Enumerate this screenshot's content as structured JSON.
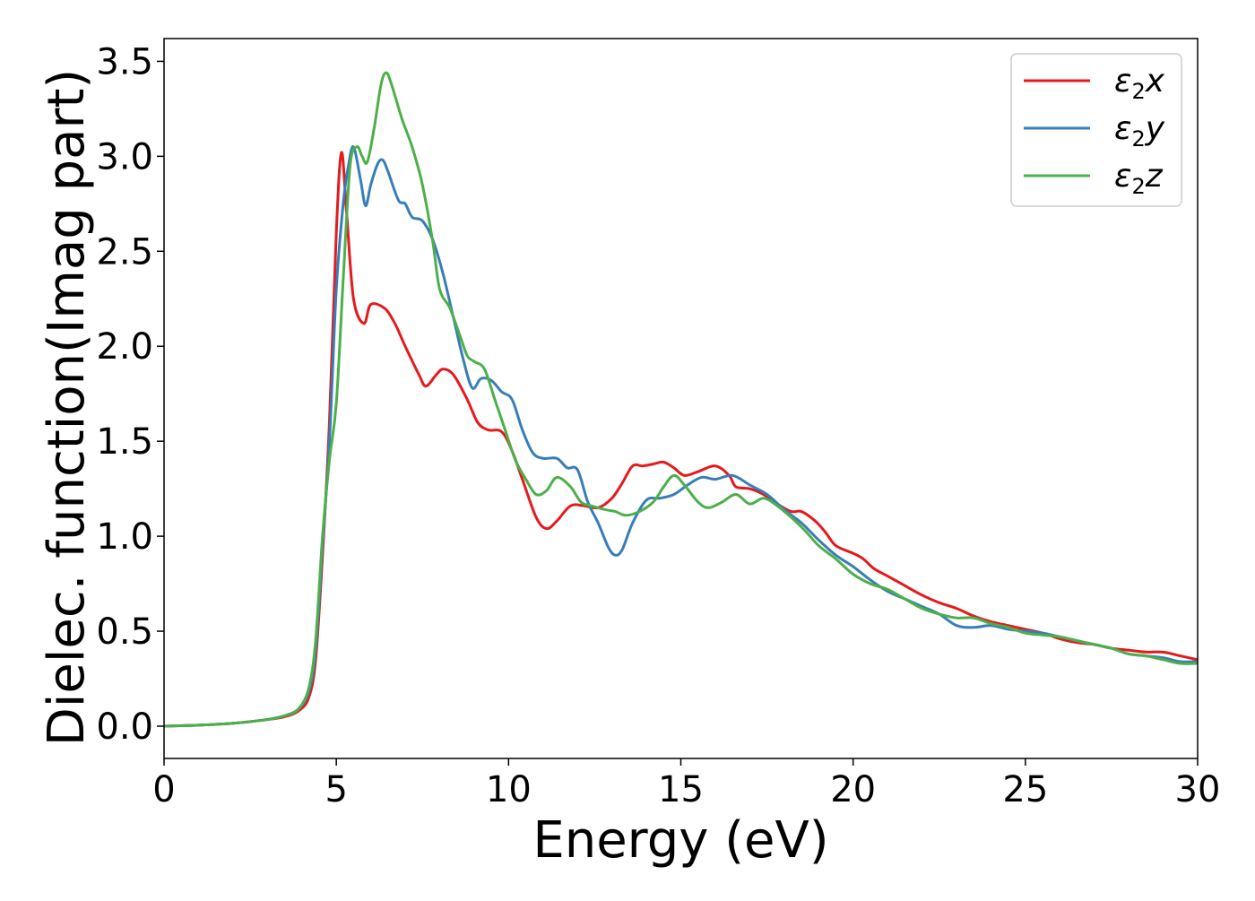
{
  "chart_data": {
    "type": "line",
    "title": "",
    "xlabel": "Energy (eV)",
    "ylabel": "Dielec. function(Imag part)",
    "xlim": [
      0,
      30
    ],
    "ylim": [
      -0.17,
      3.62
    ],
    "xticks": [
      0,
      5,
      10,
      15,
      20,
      25,
      30
    ],
    "xtick_labels": [
      "0",
      "5",
      "10",
      "15",
      "20",
      "25",
      "30"
    ],
    "yticks": [
      0.0,
      0.5,
      1.0,
      1.5,
      2.0,
      2.5,
      3.0,
      3.5
    ],
    "ytick_labels": [
      "0.0",
      "0.5",
      "1.0",
      "1.5",
      "2.0",
      "2.5",
      "3.0",
      "3.5"
    ],
    "grid": false,
    "legend_position": "top-right",
    "series": [
      {
        "name": "ε2x",
        "legend_symbol": "ε",
        "legend_sub": "2",
        "legend_var": "x",
        "color": "#e41a1c",
        "points": [
          [
            0,
            0.0
          ],
          [
            1,
            0.005
          ],
          [
            2,
            0.015
          ],
          [
            3,
            0.035
          ],
          [
            3.5,
            0.05
          ],
          [
            3.9,
            0.08
          ],
          [
            4.2,
            0.15
          ],
          [
            4.4,
            0.35
          ],
          [
            4.6,
            0.9
          ],
          [
            4.8,
            1.6
          ],
          [
            5.0,
            2.6
          ],
          [
            5.15,
            3.02
          ],
          [
            5.3,
            2.7
          ],
          [
            5.5,
            2.25
          ],
          [
            5.8,
            2.12
          ],
          [
            6.0,
            2.22
          ],
          [
            6.4,
            2.2
          ],
          [
            6.7,
            2.12
          ],
          [
            7.0,
            2.0
          ],
          [
            7.4,
            1.85
          ],
          [
            7.6,
            1.79
          ],
          [
            7.9,
            1.85
          ],
          [
            8.1,
            1.88
          ],
          [
            8.4,
            1.85
          ],
          [
            8.8,
            1.72
          ],
          [
            9.1,
            1.6
          ],
          [
            9.4,
            1.56
          ],
          [
            9.8,
            1.55
          ],
          [
            10.1,
            1.45
          ],
          [
            10.4,
            1.3
          ],
          [
            10.8,
            1.1
          ],
          [
            11.1,
            1.04
          ],
          [
            11.4,
            1.08
          ],
          [
            11.8,
            1.16
          ],
          [
            12.2,
            1.16
          ],
          [
            12.6,
            1.15
          ],
          [
            13.0,
            1.2
          ],
          [
            13.3,
            1.28
          ],
          [
            13.6,
            1.37
          ],
          [
            13.9,
            1.37
          ],
          [
            14.2,
            1.38
          ],
          [
            14.5,
            1.39
          ],
          [
            14.8,
            1.36
          ],
          [
            15.1,
            1.32
          ],
          [
            15.5,
            1.34
          ],
          [
            16.0,
            1.37
          ],
          [
            16.4,
            1.32
          ],
          [
            16.6,
            1.26
          ],
          [
            17.0,
            1.25
          ],
          [
            17.4,
            1.22
          ],
          [
            17.8,
            1.17
          ],
          [
            18.2,
            1.13
          ],
          [
            18.5,
            1.13
          ],
          [
            18.9,
            1.08
          ],
          [
            19.2,
            1.02
          ],
          [
            19.5,
            0.95
          ],
          [
            20.0,
            0.91
          ],
          [
            20.3,
            0.88
          ],
          [
            20.6,
            0.83
          ],
          [
            21.0,
            0.79
          ],
          [
            21.5,
            0.74
          ],
          [
            22.0,
            0.69
          ],
          [
            22.5,
            0.65
          ],
          [
            23.0,
            0.62
          ],
          [
            23.5,
            0.58
          ],
          [
            24.0,
            0.55
          ],
          [
            24.5,
            0.53
          ],
          [
            25.0,
            0.51
          ],
          [
            25.5,
            0.49
          ],
          [
            26.0,
            0.46
          ],
          [
            26.5,
            0.44
          ],
          [
            27.0,
            0.43
          ],
          [
            27.5,
            0.41
          ],
          [
            28.0,
            0.4
          ],
          [
            28.5,
            0.39
          ],
          [
            29.0,
            0.39
          ],
          [
            29.5,
            0.37
          ],
          [
            30.0,
            0.35
          ]
        ]
      },
      {
        "name": "ε2y",
        "legend_symbol": "ε",
        "legend_sub": "2",
        "legend_var": "y",
        "color": "#377eb8",
        "points": [
          [
            0,
            0.0
          ],
          [
            1,
            0.005
          ],
          [
            2,
            0.015
          ],
          [
            3,
            0.035
          ],
          [
            3.5,
            0.055
          ],
          [
            3.9,
            0.09
          ],
          [
            4.2,
            0.18
          ],
          [
            4.4,
            0.4
          ],
          [
            4.6,
            0.95
          ],
          [
            4.8,
            1.5
          ],
          [
            5.0,
            2.3
          ],
          [
            5.2,
            2.75
          ],
          [
            5.35,
            2.95
          ],
          [
            5.5,
            3.05
          ],
          [
            5.7,
            2.88
          ],
          [
            5.85,
            2.74
          ],
          [
            6.0,
            2.85
          ],
          [
            6.2,
            2.96
          ],
          [
            6.35,
            2.98
          ],
          [
            6.5,
            2.92
          ],
          [
            6.8,
            2.77
          ],
          [
            7.0,
            2.75
          ],
          [
            7.2,
            2.68
          ],
          [
            7.5,
            2.66
          ],
          [
            7.8,
            2.56
          ],
          [
            8.1,
            2.38
          ],
          [
            8.4,
            2.15
          ],
          [
            8.7,
            1.92
          ],
          [
            8.95,
            1.78
          ],
          [
            9.2,
            1.83
          ],
          [
            9.5,
            1.82
          ],
          [
            9.8,
            1.76
          ],
          [
            10.1,
            1.72
          ],
          [
            10.4,
            1.56
          ],
          [
            10.7,
            1.44
          ],
          [
            11.0,
            1.41
          ],
          [
            11.4,
            1.41
          ],
          [
            11.7,
            1.36
          ],
          [
            12.0,
            1.35
          ],
          [
            12.3,
            1.18
          ],
          [
            12.6,
            1.07
          ],
          [
            12.9,
            0.94
          ],
          [
            13.1,
            0.9
          ],
          [
            13.3,
            0.93
          ],
          [
            13.6,
            1.07
          ],
          [
            14.0,
            1.19
          ],
          [
            14.4,
            1.2
          ],
          [
            14.8,
            1.22
          ],
          [
            15.2,
            1.27
          ],
          [
            15.6,
            1.31
          ],
          [
            16.0,
            1.3
          ],
          [
            16.5,
            1.32
          ],
          [
            17.0,
            1.27
          ],
          [
            17.5,
            1.22
          ],
          [
            18.0,
            1.14
          ],
          [
            18.5,
            1.07
          ],
          [
            19.0,
            0.98
          ],
          [
            19.5,
            0.9
          ],
          [
            20.0,
            0.84
          ],
          [
            20.5,
            0.77
          ],
          [
            21.0,
            0.71
          ],
          [
            21.5,
            0.67
          ],
          [
            22.0,
            0.63
          ],
          [
            22.5,
            0.59
          ],
          [
            23.0,
            0.53
          ],
          [
            23.5,
            0.52
          ],
          [
            24.0,
            0.53
          ],
          [
            24.5,
            0.51
          ],
          [
            25.0,
            0.5
          ],
          [
            25.5,
            0.49
          ],
          [
            26.0,
            0.47
          ],
          [
            26.5,
            0.45
          ],
          [
            27.0,
            0.43
          ],
          [
            27.5,
            0.41
          ],
          [
            28.0,
            0.38
          ],
          [
            28.5,
            0.37
          ],
          [
            29.0,
            0.36
          ],
          [
            29.5,
            0.34
          ],
          [
            30.0,
            0.34
          ]
        ]
      },
      {
        "name": "ε2z",
        "legend_symbol": "ε",
        "legend_sub": "2",
        "legend_var": "z",
        "color": "#4daf4a",
        "points": [
          [
            0,
            0.0
          ],
          [
            1,
            0.005
          ],
          [
            2,
            0.015
          ],
          [
            3,
            0.035
          ],
          [
            3.5,
            0.055
          ],
          [
            3.9,
            0.09
          ],
          [
            4.2,
            0.2
          ],
          [
            4.4,
            0.45
          ],
          [
            4.6,
            1.0
          ],
          [
            4.8,
            1.4
          ],
          [
            5.0,
            1.7
          ],
          [
            5.2,
            2.35
          ],
          [
            5.4,
            2.95
          ],
          [
            5.6,
            3.05
          ],
          [
            5.75,
            3.0
          ],
          [
            5.9,
            2.97
          ],
          [
            6.1,
            3.15
          ],
          [
            6.3,
            3.38
          ],
          [
            6.45,
            3.44
          ],
          [
            6.6,
            3.38
          ],
          [
            6.9,
            3.2
          ],
          [
            7.2,
            3.05
          ],
          [
            7.5,
            2.85
          ],
          [
            7.8,
            2.55
          ],
          [
            8.0,
            2.3
          ],
          [
            8.3,
            2.2
          ],
          [
            8.6,
            2.05
          ],
          [
            8.8,
            1.95
          ],
          [
            9.0,
            1.92
          ],
          [
            9.3,
            1.88
          ],
          [
            9.6,
            1.72
          ],
          [
            9.9,
            1.56
          ],
          [
            10.2,
            1.4
          ],
          [
            10.5,
            1.3
          ],
          [
            10.8,
            1.22
          ],
          [
            11.1,
            1.24
          ],
          [
            11.4,
            1.31
          ],
          [
            11.8,
            1.26
          ],
          [
            12.1,
            1.18
          ],
          [
            12.4,
            1.16
          ],
          [
            12.8,
            1.14
          ],
          [
            13.1,
            1.13
          ],
          [
            13.4,
            1.11
          ],
          [
            13.8,
            1.13
          ],
          [
            14.2,
            1.18
          ],
          [
            14.5,
            1.26
          ],
          [
            14.8,
            1.32
          ],
          [
            15.1,
            1.27
          ],
          [
            15.5,
            1.18
          ],
          [
            15.8,
            1.15
          ],
          [
            16.2,
            1.18
          ],
          [
            16.6,
            1.22
          ],
          [
            17.0,
            1.17
          ],
          [
            17.4,
            1.2
          ],
          [
            17.8,
            1.16
          ],
          [
            18.2,
            1.1
          ],
          [
            18.6,
            1.03
          ],
          [
            19.0,
            0.95
          ],
          [
            19.5,
            0.88
          ],
          [
            20.0,
            0.8
          ],
          [
            20.5,
            0.75
          ],
          [
            21.0,
            0.72
          ],
          [
            21.5,
            0.67
          ],
          [
            22.0,
            0.62
          ],
          [
            22.5,
            0.59
          ],
          [
            23.0,
            0.57
          ],
          [
            23.5,
            0.57
          ],
          [
            24.0,
            0.54
          ],
          [
            24.5,
            0.52
          ],
          [
            25.0,
            0.49
          ],
          [
            25.5,
            0.48
          ],
          [
            26.0,
            0.47
          ],
          [
            26.5,
            0.45
          ],
          [
            27.0,
            0.43
          ],
          [
            27.5,
            0.41
          ],
          [
            28.0,
            0.38
          ],
          [
            28.5,
            0.37
          ],
          [
            29.0,
            0.35
          ],
          [
            29.5,
            0.33
          ],
          [
            30.0,
            0.33
          ]
        ]
      }
    ]
  }
}
